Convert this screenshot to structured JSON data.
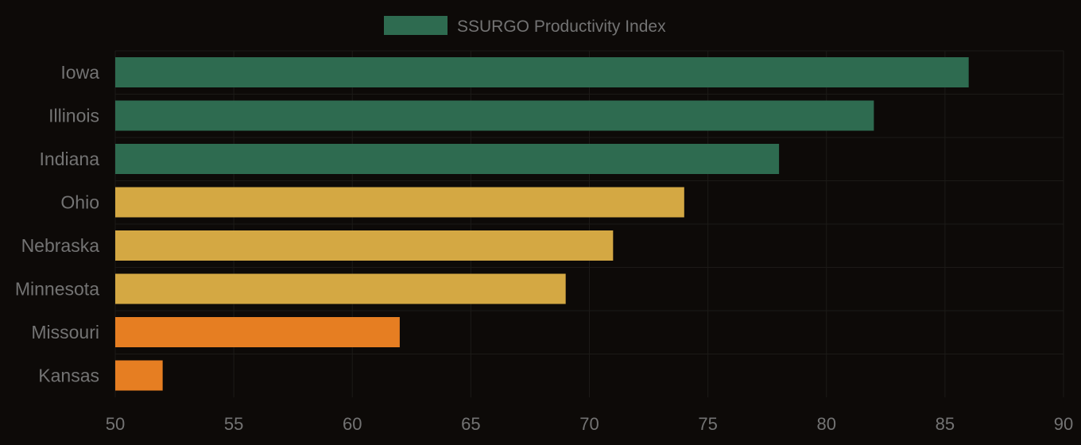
{
  "colors": {
    "background": "#0d0a08",
    "text": "#737373",
    "gridline": "#1c1a17",
    "high": "#2e6b50",
    "medium": "#d4a843",
    "low": "#e67e22"
  },
  "chart_data": {
    "type": "bar",
    "orientation": "horizontal",
    "title": "",
    "xlabel": "",
    "ylabel": "",
    "categories": [
      "Iowa",
      "Illinois",
      "Indiana",
      "Ohio",
      "Nebraska",
      "Minnesota",
      "Missouri",
      "Kansas"
    ],
    "values": [
      86,
      82,
      78,
      74,
      71,
      69,
      62,
      52
    ],
    "bar_colors": [
      "#2e6b50",
      "#2e6b50",
      "#2e6b50",
      "#d4a843",
      "#d4a843",
      "#d4a843",
      "#e67e22",
      "#e67e22"
    ],
    "series": [
      {
        "name": "SSURGO Productivity Index",
        "values": [
          86,
          82,
          78,
          74,
          71,
          69,
          62,
          52
        ]
      }
    ],
    "xlim": [
      50,
      90
    ],
    "xticks": [
      50,
      55,
      60,
      65,
      70,
      75,
      80,
      85,
      90
    ],
    "grid": true,
    "legend": {
      "position": "top-center",
      "label": "SSURGO Productivity Index",
      "color": "#2e6b50"
    }
  }
}
